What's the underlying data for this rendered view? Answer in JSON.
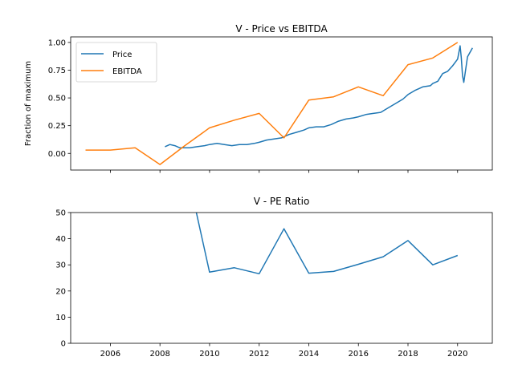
{
  "chart_data": [
    {
      "type": "line",
      "title": "V - Price vs EBITDA",
      "xlabel": "",
      "ylabel": "Fraction of maximum",
      "xlim": [
        2004.4,
        2021.4
      ],
      "ylim": [
        -0.15,
        1.05
      ],
      "y_ticks": [
        "0.00",
        "0.25",
        "0.50",
        "0.75",
        "1.00"
      ],
      "legend": "upper-left",
      "grid": false,
      "series": [
        {
          "name": "Price",
          "color": "#1f77b4",
          "x": [
            2008.2,
            2008.4,
            2008.6,
            2008.8,
            2009.0,
            2009.2,
            2009.5,
            2009.8,
            2010.0,
            2010.3,
            2010.6,
            2010.9,
            2011.2,
            2011.5,
            2011.8,
            2012.0,
            2012.3,
            2012.6,
            2012.9,
            2013.2,
            2013.5,
            2013.8,
            2014.0,
            2014.3,
            2014.6,
            2014.9,
            2015.2,
            2015.5,
            2015.8,
            2016.0,
            2016.3,
            2016.6,
            2016.9,
            2017.2,
            2017.5,
            2017.8,
            2018.0,
            2018.3,
            2018.6,
            2018.9,
            2019.0,
            2019.2,
            2019.4,
            2019.6,
            2019.8,
            2020.0,
            2020.1,
            2020.15,
            2020.2,
            2020.25,
            2020.4,
            2020.6
          ],
          "values": [
            0.06,
            0.08,
            0.07,
            0.05,
            0.05,
            0.05,
            0.06,
            0.07,
            0.08,
            0.09,
            0.08,
            0.07,
            0.08,
            0.08,
            0.09,
            0.1,
            0.12,
            0.13,
            0.14,
            0.17,
            0.19,
            0.21,
            0.23,
            0.24,
            0.24,
            0.26,
            0.29,
            0.31,
            0.32,
            0.33,
            0.35,
            0.36,
            0.37,
            0.41,
            0.45,
            0.49,
            0.53,
            0.57,
            0.6,
            0.61,
            0.63,
            0.65,
            0.72,
            0.74,
            0.79,
            0.85,
            0.97,
            0.86,
            0.7,
            0.64,
            0.87,
            0.95
          ]
        },
        {
          "name": "EBITDA",
          "color": "#ff7f0e",
          "x": [
            2005,
            2006,
            2007,
            2008,
            2009,
            2010,
            2011,
            2012,
            2013,
            2014,
            2015,
            2016,
            2017,
            2018,
            2019,
            2020
          ],
          "values": [
            0.03,
            0.03,
            0.05,
            -0.1,
            0.07,
            0.23,
            0.3,
            0.36,
            0.14,
            0.48,
            0.51,
            0.6,
            0.52,
            0.8,
            0.86,
            1.0
          ]
        }
      ]
    },
    {
      "type": "line",
      "title": "V - PE Ratio",
      "xlabel": "",
      "ylabel": "",
      "xlim": [
        2004.4,
        2021.4
      ],
      "ylim": [
        0,
        50
      ],
      "x_ticks": [
        "2006",
        "2008",
        "2010",
        "2012",
        "2014",
        "2016",
        "2018",
        "2020"
      ],
      "y_ticks": [
        "0",
        "10",
        "20",
        "30",
        "40",
        "50"
      ],
      "grid": false,
      "series": [
        {
          "color": "#1f77b4",
          "x": [
            2009,
            2010,
            2011,
            2012,
            2013,
            2014,
            2015,
            2016,
            2017,
            2018,
            2019,
            2020
          ],
          "values": [
            70,
            27.2,
            28.9,
            26.6,
            43.8,
            26.8,
            27.5,
            30.2,
            33.1,
            39.3,
            30.0,
            33.6
          ]
        }
      ]
    }
  ]
}
